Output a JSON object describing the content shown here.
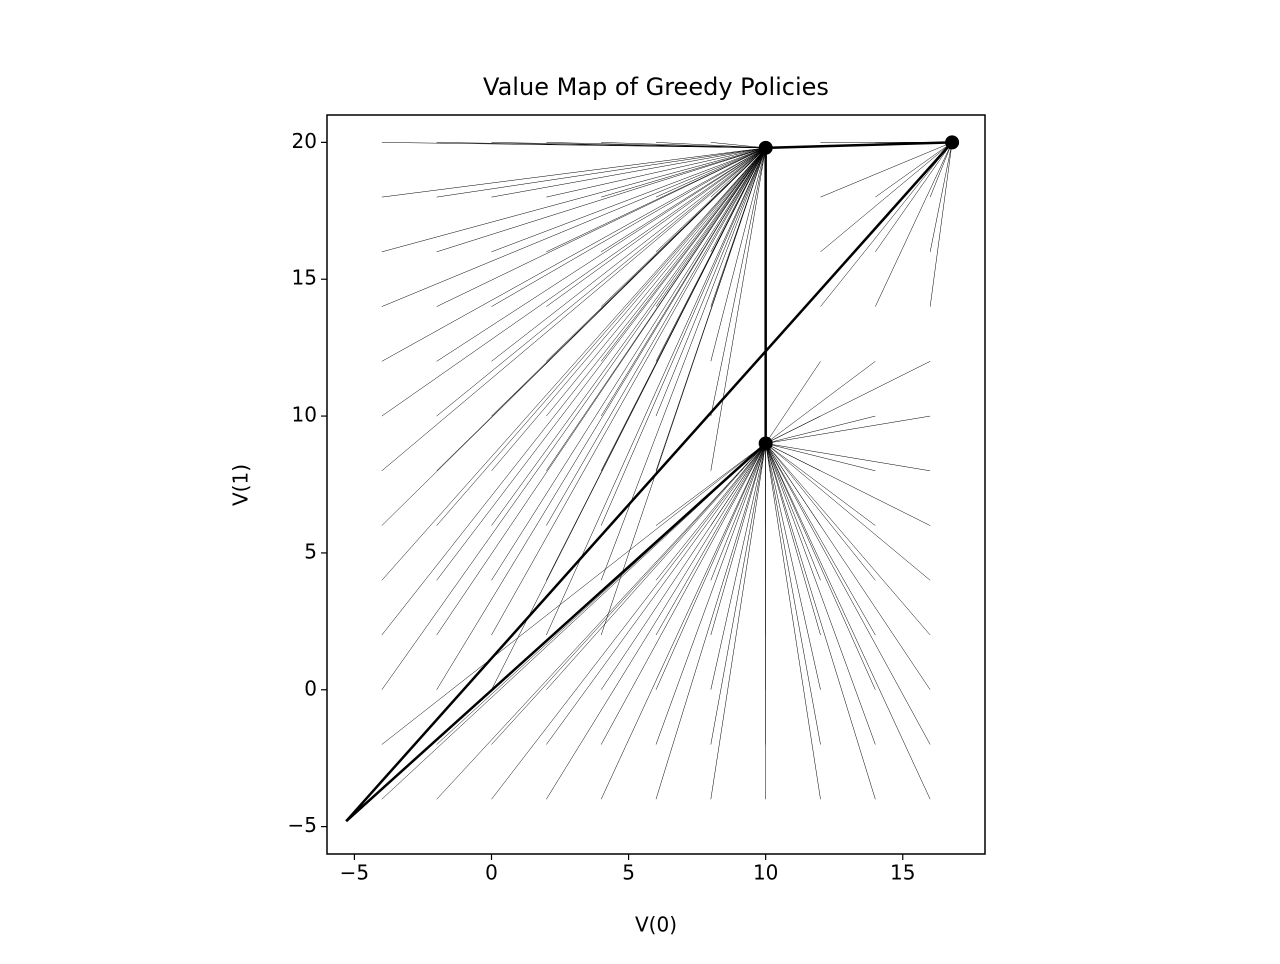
{
  "chart_data": {
    "type": "vector_map",
    "title": "Value Map of Greedy Policies",
    "x_label": "V(0)",
    "y_label": "V(1)",
    "xlim": [
      -6,
      18
    ],
    "ylim": [
      -6,
      21
    ],
    "xticks": [
      {
        "value": -5,
        "label": "−5"
      },
      0,
      5,
      10,
      15
    ],
    "yticks": [
      {
        "value": -5,
        "label": "−5"
      },
      0,
      5,
      10,
      15,
      20
    ],
    "color": "#000000",
    "series": [
      {
        "target": [
          10,
          9
        ],
        "points": [
          [
            -4,
            -4
          ],
          [
            -2,
            -4
          ],
          [
            0,
            -4
          ],
          [
            2,
            -4
          ],
          [
            4,
            -4
          ],
          [
            6,
            -4
          ],
          [
            8,
            -4
          ],
          [
            10,
            -4
          ],
          [
            12,
            -4
          ],
          [
            14,
            -4
          ],
          [
            16,
            -4
          ],
          [
            -4,
            -2
          ],
          [
            -2,
            -2
          ],
          [
            0,
            -2
          ],
          [
            2,
            -2
          ],
          [
            4,
            -2
          ],
          [
            6,
            -2
          ],
          [
            8,
            -2
          ],
          [
            10,
            -2
          ],
          [
            12,
            -2
          ],
          [
            14,
            -2
          ],
          [
            16,
            -2
          ],
          [
            2,
            0
          ],
          [
            4,
            0
          ],
          [
            6,
            0
          ],
          [
            8,
            0
          ],
          [
            10,
            0
          ],
          [
            12,
            0
          ],
          [
            14,
            0
          ],
          [
            16,
            0
          ],
          [
            6,
            2
          ],
          [
            8,
            2
          ],
          [
            10,
            2
          ],
          [
            12,
            2
          ],
          [
            14,
            2
          ],
          [
            16,
            2
          ],
          [
            6,
            4
          ],
          [
            8,
            4
          ],
          [
            10,
            4
          ],
          [
            12,
            4
          ],
          [
            14,
            4
          ],
          [
            16,
            4
          ],
          [
            6,
            6
          ],
          [
            8,
            6
          ],
          [
            10,
            6
          ],
          [
            12,
            6
          ],
          [
            14,
            6
          ],
          [
            16,
            6
          ],
          [
            12,
            8
          ],
          [
            14,
            8
          ],
          [
            16,
            8
          ],
          [
            12,
            10
          ],
          [
            14,
            10
          ],
          [
            16,
            10
          ],
          [
            12,
            12
          ],
          [
            14,
            12
          ],
          [
            16,
            12
          ]
        ]
      },
      {
        "target": [
          10,
          19.8
        ],
        "points": [
          [
            -4,
            0
          ],
          [
            -4,
            2
          ],
          [
            -4,
            4
          ],
          [
            -4,
            6
          ],
          [
            -4,
            8
          ],
          [
            -4,
            10
          ],
          [
            -4,
            12
          ],
          [
            -4,
            14
          ],
          [
            -4,
            16
          ],
          [
            -4,
            18
          ],
          [
            -4,
            20
          ],
          [
            -2,
            0
          ],
          [
            -2,
            2
          ],
          [
            -2,
            4
          ],
          [
            -2,
            6
          ],
          [
            -2,
            8
          ],
          [
            -2,
            10
          ],
          [
            -2,
            12
          ],
          [
            -2,
            14
          ],
          [
            -2,
            16
          ],
          [
            -2,
            18
          ],
          [
            -2,
            20
          ],
          [
            0,
            0
          ],
          [
            0,
            2
          ],
          [
            0,
            4
          ],
          [
            0,
            6
          ],
          [
            0,
            8
          ],
          [
            0,
            10
          ],
          [
            0,
            12
          ],
          [
            0,
            14
          ],
          [
            0,
            16
          ],
          [
            0,
            18
          ],
          [
            0,
            20
          ],
          [
            2,
            2
          ],
          [
            2,
            4
          ],
          [
            2,
            6
          ],
          [
            2,
            8
          ],
          [
            2,
            10
          ],
          [
            2,
            12
          ],
          [
            2,
            14
          ],
          [
            2,
            16
          ],
          [
            2,
            18
          ],
          [
            2,
            20
          ],
          [
            4,
            2
          ],
          [
            4,
            4
          ],
          [
            4,
            6
          ],
          [
            4,
            8
          ],
          [
            4,
            10
          ],
          [
            4,
            12
          ],
          [
            4,
            14
          ],
          [
            4,
            16
          ],
          [
            4,
            18
          ],
          [
            4,
            20
          ],
          [
            6,
            8
          ],
          [
            6,
            10
          ],
          [
            6,
            12
          ],
          [
            6,
            14
          ],
          [
            6,
            16
          ],
          [
            6,
            18
          ],
          [
            6,
            20
          ],
          [
            8,
            8
          ],
          [
            8,
            10
          ],
          [
            8,
            12
          ],
          [
            8,
            14
          ],
          [
            8,
            16
          ],
          [
            8,
            18
          ],
          [
            8,
            20
          ],
          [
            10,
            10
          ],
          [
            10,
            12
          ],
          [
            10,
            14
          ],
          [
            10,
            16
          ],
          [
            10,
            18
          ]
        ]
      },
      {
        "target": [
          16.8,
          20
        ],
        "points": [
          [
            12,
            14
          ],
          [
            14,
            14
          ],
          [
            16,
            14
          ],
          [
            12,
            16
          ],
          [
            14,
            16
          ],
          [
            16,
            16
          ],
          [
            12,
            18
          ],
          [
            14,
            18
          ],
          [
            16,
            18
          ],
          [
            12,
            20
          ],
          [
            14,
            20
          ],
          [
            16,
            20
          ]
        ]
      }
    ],
    "trajectories": [
      {
        "x": [
          -5.3,
          16.8
        ],
        "y": [
          -4.8,
          20
        ]
      },
      {
        "x": [
          -5.3,
          10
        ],
        "y": [
          -4.8,
          9
        ]
      },
      {
        "x": [
          10,
          10
        ],
        "y": [
          9,
          19.8
        ]
      },
      {
        "x": [
          10,
          16.8
        ],
        "y": [
          19.8,
          20
        ]
      }
    ]
  }
}
